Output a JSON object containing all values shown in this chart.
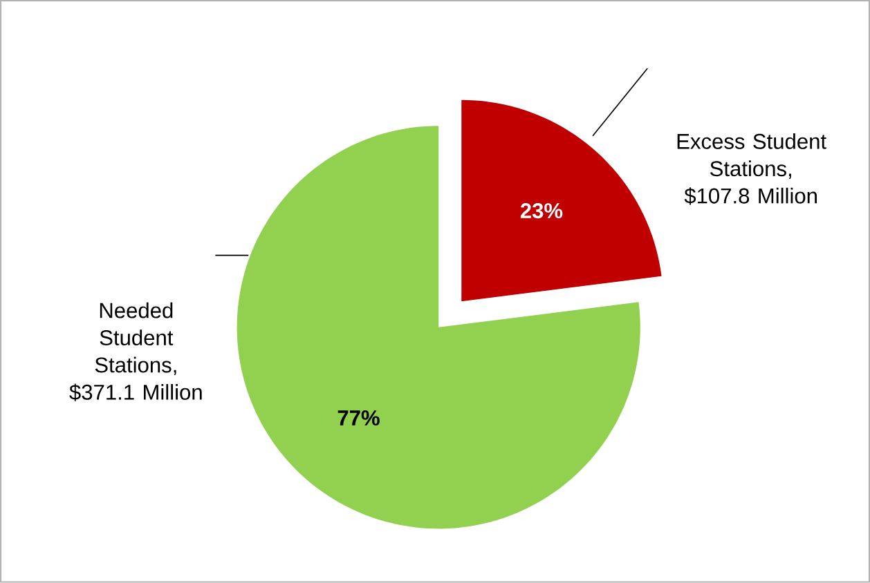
{
  "chart_data": {
    "type": "pie",
    "categories": [
      "Needed Student Stations, $371.1 Million",
      "Excess Student Stations, $107.8 Million"
    ],
    "values": [
      77,
      23
    ],
    "value_labels": [
      "77%",
      "23%"
    ],
    "colors": [
      "#92d050",
      "#c00000"
    ]
  }
}
